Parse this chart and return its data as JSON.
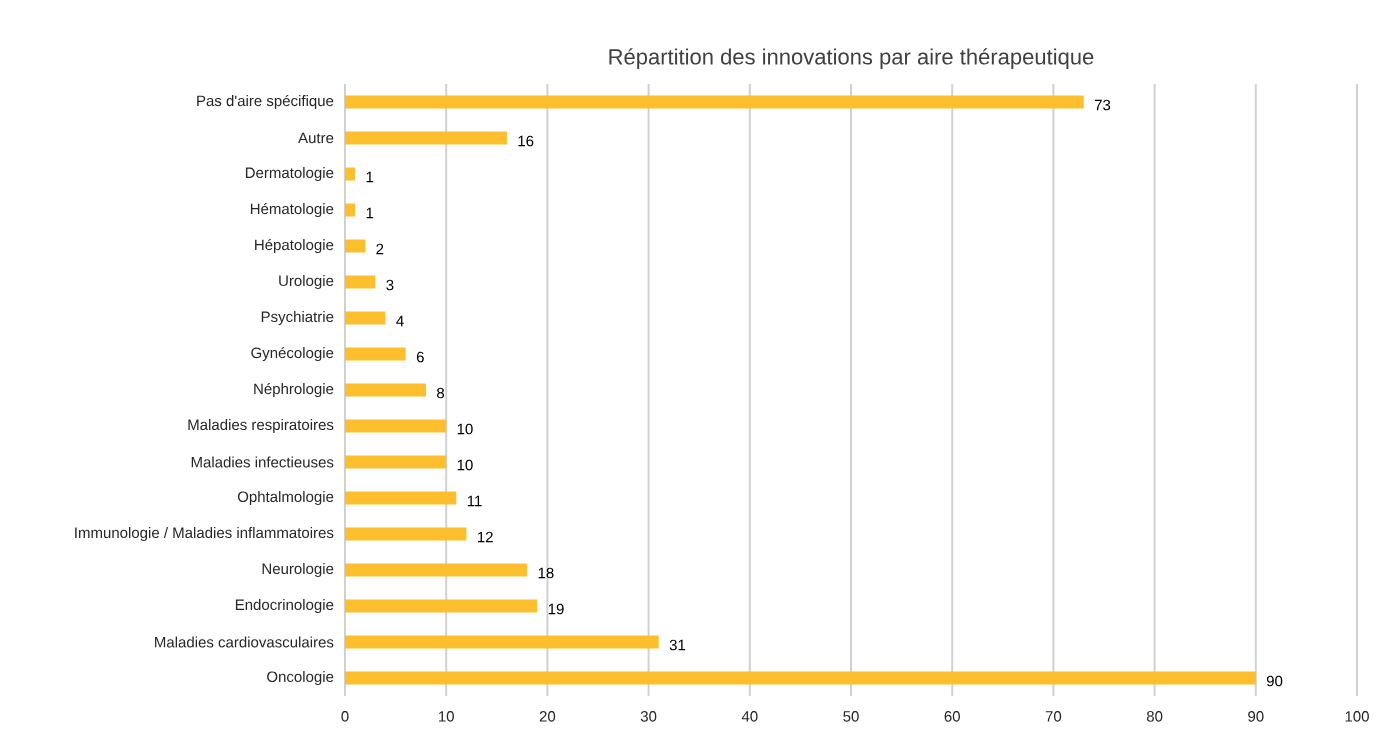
{
  "chart_data": {
    "type": "bar",
    "orientation": "horizontal",
    "title": "Répartition des innovations par aire thérapeutique",
    "categories": [
      "Pas d'aire spécifique",
      "Autre",
      "Dermatologie",
      "Hématologie",
      "Hépatologie",
      "Urologie",
      "Psychiatrie",
      "Gynécologie",
      "Néphrologie",
      "Maladies respiratoires",
      "Maladies infectieuses",
      "Ophtalmologie",
      "Immunologie / Maladies inflammatoires",
      "Neurologie",
      "Endocrinologie",
      "Maladies cardiovasculaires",
      "Oncologie"
    ],
    "values": [
      73,
      16,
      1,
      1,
      2,
      3,
      4,
      6,
      8,
      10,
      10,
      11,
      12,
      18,
      19,
      31,
      90
    ],
    "color": "#fdbf2d",
    "xlim": [
      0,
      100
    ],
    "xticks": [
      0,
      10,
      20,
      30,
      40,
      50,
      60,
      70,
      80,
      90,
      100
    ],
    "grid": "x",
    "data_labels": true
  }
}
